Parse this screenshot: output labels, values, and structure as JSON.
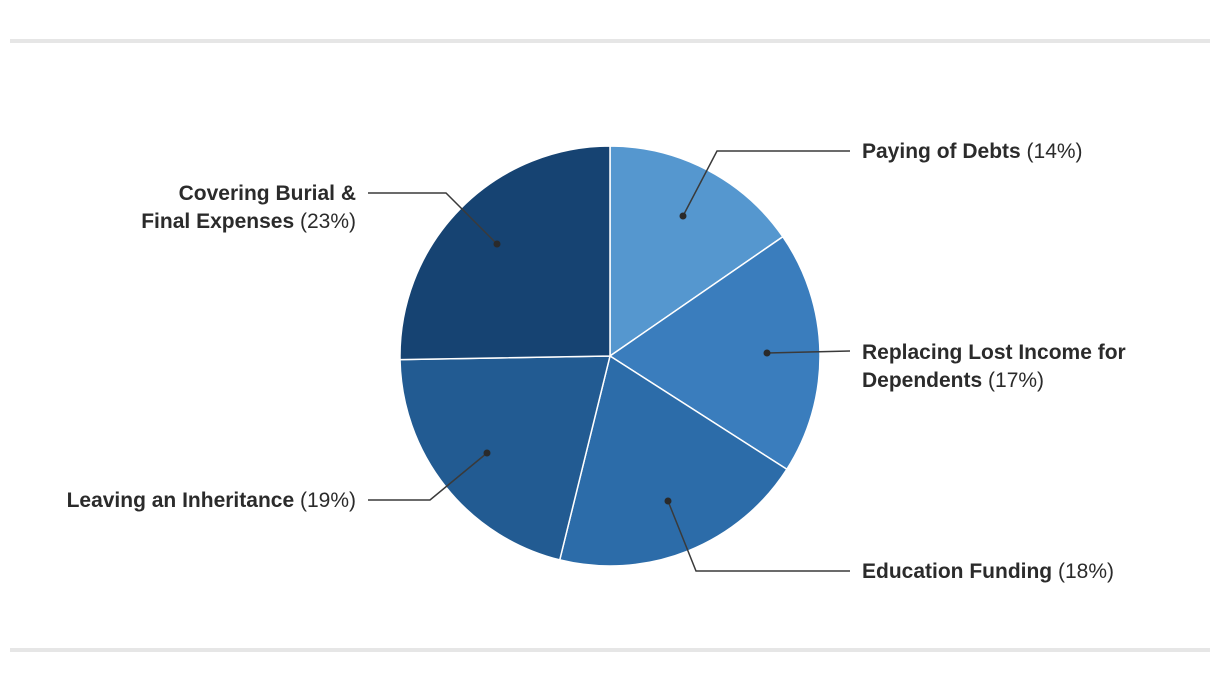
{
  "chart_data": {
    "type": "pie",
    "title": "",
    "slices": [
      {
        "label": "Paying of Debts",
        "value": 14,
        "percent_label": "(14%)",
        "color": "#5597cf"
      },
      {
        "label": "Replacing Lost Income for Dependents",
        "value": 17,
        "percent_label": "(17%)",
        "color": "#3a7dbd"
      },
      {
        "label": "Education Funding",
        "value": 18,
        "percent_label": "(18%)",
        "color": "#2c6ca9"
      },
      {
        "label": "Leaving an Inheritance",
        "value": 19,
        "percent_label": "(19%)",
        "color": "#225b92"
      },
      {
        "label": "Covering Burial & Final Expenses",
        "value": 23,
        "percent_label": "(23%)",
        "color": "#164372"
      }
    ],
    "legend": "callout labels",
    "start_angle": "12 o'clock",
    "direction": "clockwise"
  }
}
